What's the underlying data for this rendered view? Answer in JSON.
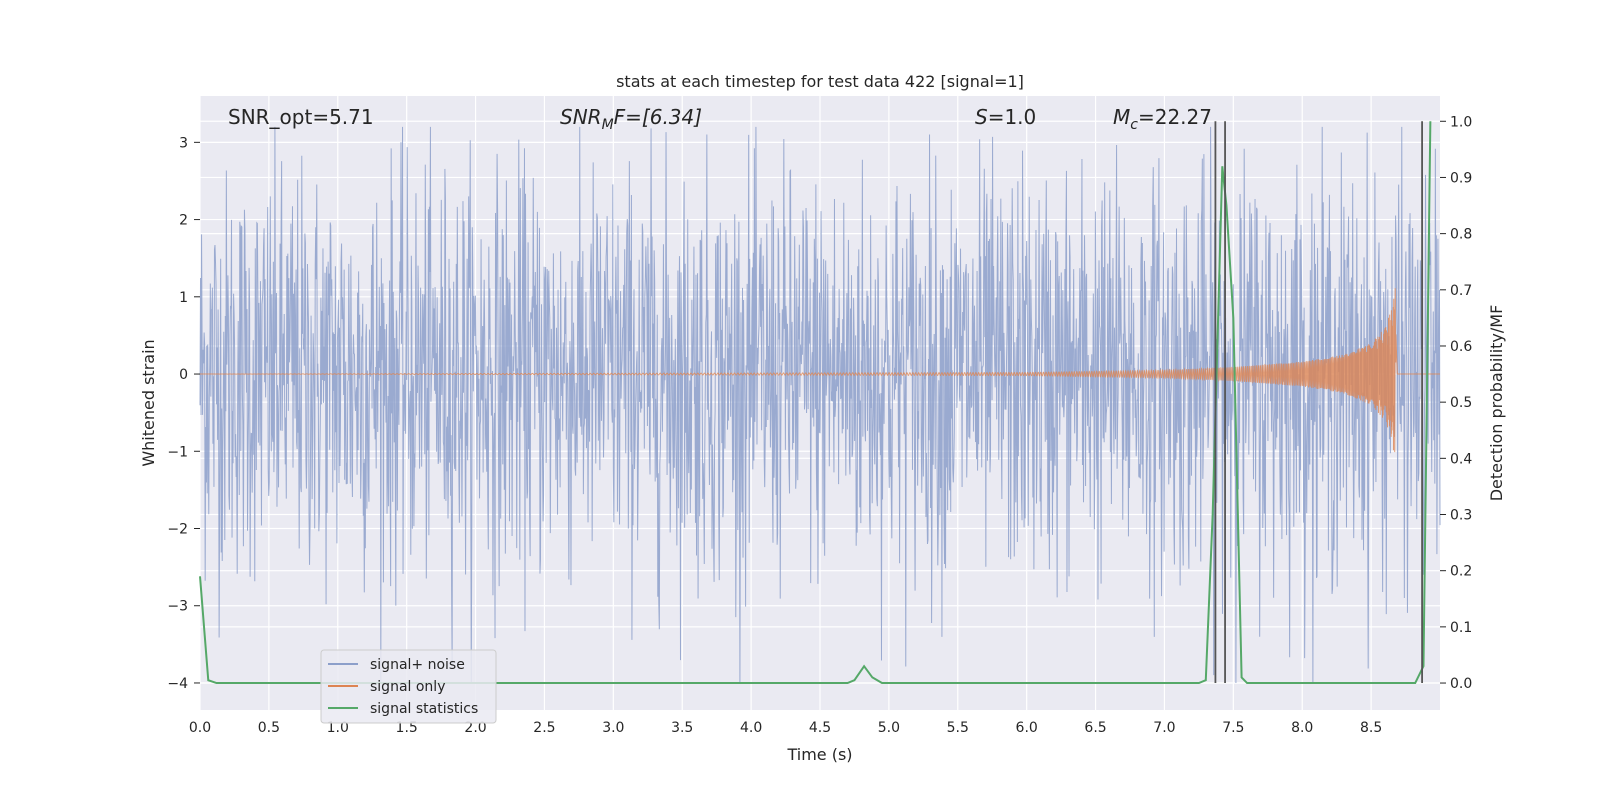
{
  "chart_data": {
    "type": "line",
    "title": "stats at each timestep for test data 422 [signal=1]",
    "xlabel": "Time (s)",
    "ylabel": "Whitened strain",
    "y2label": "Detection probability/MF",
    "xlim": [
      0.0,
      9.0
    ],
    "ylim": [
      -4.35,
      3.6
    ],
    "y2lim": [
      -0.048,
      1.045
    ],
    "x_ticks": [
      "0.0",
      "0.5",
      "1.0",
      "1.5",
      "2.0",
      "2.5",
      "3.0",
      "3.5",
      "4.0",
      "4.5",
      "5.0",
      "5.5",
      "6.0",
      "6.5",
      "7.0",
      "7.5",
      "8.0",
      "8.5"
    ],
    "y_ticks": [
      "−4",
      "−3",
      "−2",
      "−1",
      "0",
      "1",
      "2",
      "3"
    ],
    "y2_ticks": [
      "0.0",
      "0.1",
      "0.2",
      "0.3",
      "0.4",
      "0.5",
      "0.6",
      "0.7",
      "0.8",
      "0.9",
      "1.0"
    ],
    "grid": true,
    "legend_position": "lower-left",
    "annotations": [
      {
        "name": "snr-opt",
        "text": "SNR_opt=5.71"
      },
      {
        "name": "snr-mf",
        "text": "SNR_MF=[6.34]",
        "main": "SNR",
        "sub": "M",
        "rest": "F=[6.34]"
      },
      {
        "name": "s-stat",
        "text": "S=1.0",
        "main": "S",
        "rest": "=1.0"
      },
      {
        "name": "chirp-mass",
        "text": "M_c=22.27",
        "main": "M",
        "sub": "c",
        "rest": "=22.27"
      }
    ],
    "vertical_lines_x": [
      7.37,
      7.44,
      8.87
    ],
    "series": [
      {
        "name": "signal+ noise",
        "color": "#8c9fca",
        "noise_amplitude": 1.3,
        "clip_low": -4.0,
        "clip_high": 3.2
      },
      {
        "name": "signal only",
        "color": "#dd8452",
        "envelope": {
          "x": [
            6.0,
            7.0,
            7.5,
            8.0,
            8.3,
            8.5,
            8.6,
            8.65,
            8.68
          ],
          "y": [
            0.02,
            0.05,
            0.09,
            0.16,
            0.25,
            0.4,
            0.6,
            0.85,
            1.2
          ]
        }
      },
      {
        "name": "signal statistics",
        "color": "#55a868",
        "x": [
          0.0,
          0.06,
          0.12,
          0.5,
          1.0,
          2.0,
          3.0,
          4.0,
          4.5,
          4.7,
          4.75,
          4.82,
          4.88,
          4.95,
          5.0,
          6.0,
          7.0,
          7.25,
          7.3,
          7.35,
          7.42,
          7.45,
          7.5,
          7.56,
          7.6,
          7.65,
          8.0,
          8.5,
          8.82,
          8.88,
          8.93
        ],
        "y": [
          0.19,
          0.005,
          0.0,
          0.0,
          0.0,
          0.0,
          0.0,
          0.0,
          0.0,
          0.0,
          0.005,
          0.03,
          0.01,
          0.0,
          0.0,
          0.0,
          0.0,
          0.0,
          0.005,
          0.3,
          0.92,
          0.85,
          0.65,
          0.01,
          0.0,
          0.0,
          0.0,
          0.0,
          0.0,
          0.03,
          1.0
        ]
      }
    ]
  }
}
